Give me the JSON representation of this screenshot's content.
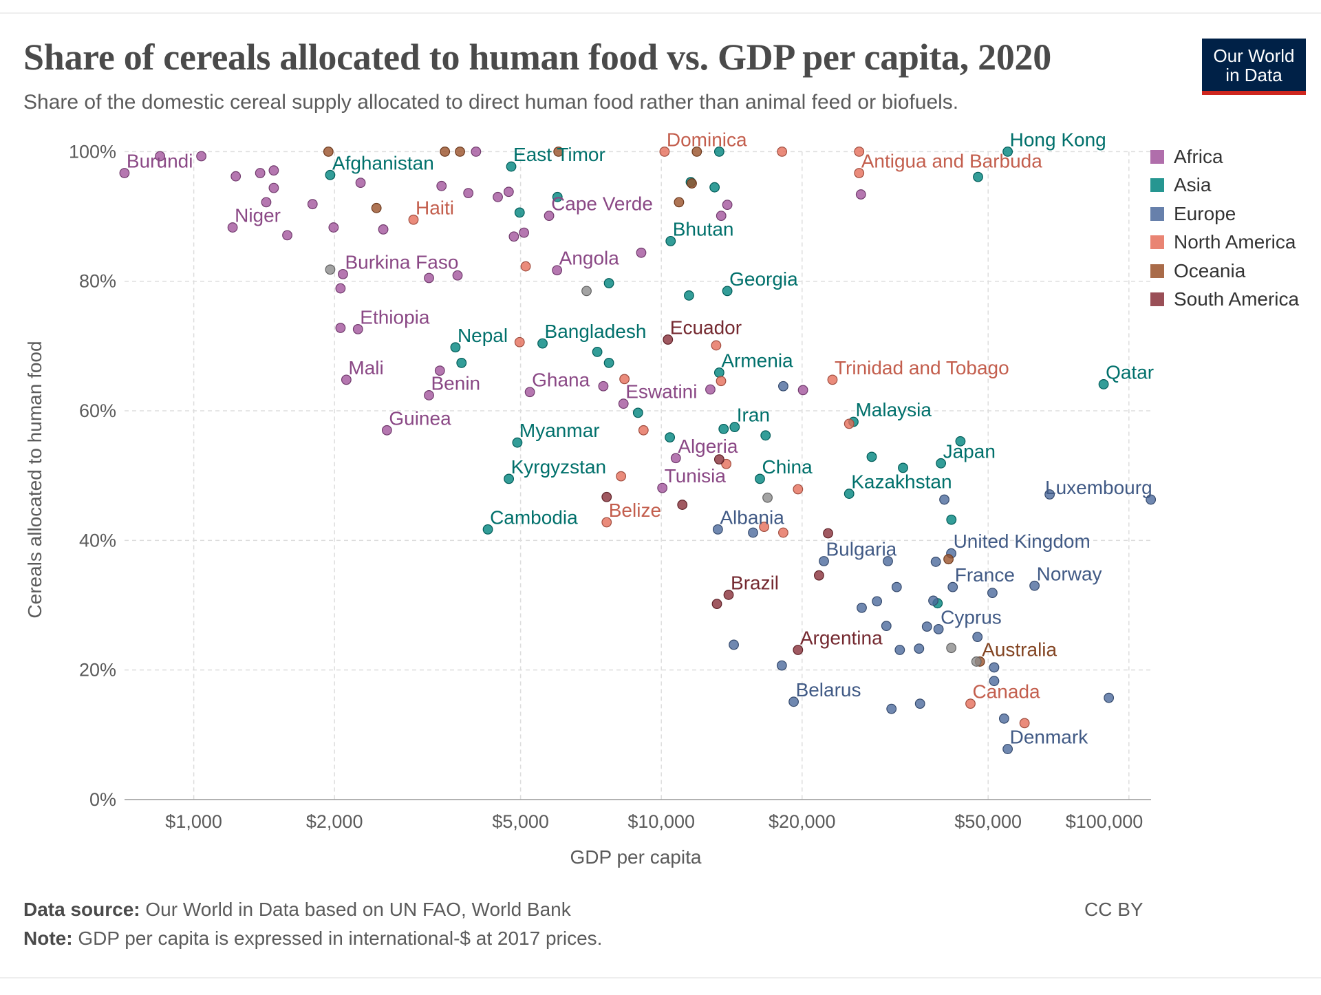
{
  "header": {
    "title": "Share of cereals allocated to human food vs. GDP per capita, 2020",
    "subtitle": "Share of the domestic cereal supply allocated to direct human food rather than animal feed or biofuels.",
    "logo_line1": "Our World",
    "logo_line2": "in Data"
  },
  "footer": {
    "source_label": "Data source:",
    "source_text": " Our World in Data based on UN FAO, World Bank",
    "note_label": "Note:",
    "note_text": " GDP per capita is expressed in international-$ at 2017 prices.",
    "license": "CC BY"
  },
  "chart_data": {
    "type": "scatter",
    "title": "Share of cereals allocated to human food vs. GDP per capita, 2020",
    "xlabel": "GDP per capita",
    "ylabel": "Cereals allocated to human food",
    "x_scale": "log",
    "xlim": [
      711,
      111000
    ],
    "ylim": [
      0,
      100
    ],
    "x_ticks": [
      1000,
      2000,
      5000,
      10000,
      20000,
      50000,
      100000
    ],
    "x_tick_labels": [
      "$1,000",
      "$2,000",
      "$5,000",
      "$10,000",
      "$20,000",
      "$50,000",
      "$100,000"
    ],
    "y_ticks": [
      0,
      20,
      40,
      60,
      80,
      100
    ],
    "y_tick_labels": [
      "0%",
      "20%",
      "40%",
      "60%",
      "80%",
      "100%"
    ],
    "grid": true,
    "legend_position": "right",
    "series": [
      {
        "name": "Africa",
        "color": "#a2559c",
        "points": [
          {
            "x": 711,
            "y": 96.7,
            "label": "Burundi"
          },
          {
            "x": 847,
            "y": 99.3
          },
          {
            "x": 1038,
            "y": 99.3
          },
          {
            "x": 1230,
            "y": 96.2
          },
          {
            "x": 1387,
            "y": 96.7
          },
          {
            "x": 1483,
            "y": 97.1
          },
          {
            "x": 1483,
            "y": 94.4
          },
          {
            "x": 1429,
            "y": 92.2
          },
          {
            "x": 1211,
            "y": 88.3,
            "label": "Niger"
          },
          {
            "x": 1585,
            "y": 87.1
          },
          {
            "x": 1795,
            "y": 91.9
          },
          {
            "x": 1991,
            "y": 88.3
          },
          {
            "x": 2274,
            "y": 95.2
          },
          {
            "x": 2543,
            "y": 88.0
          },
          {
            "x": 3388,
            "y": 94.7
          },
          {
            "x": 3866,
            "y": 93.6
          },
          {
            "x": 4015,
            "y": 100
          },
          {
            "x": 4470,
            "y": 93.0
          },
          {
            "x": 4716,
            "y": 93.8
          },
          {
            "x": 4838,
            "y": 86.9
          },
          {
            "x": 5085,
            "y": 87.5
          },
          {
            "x": 5754,
            "y": 90.1,
            "label": "Cape Verde"
          },
          {
            "x": 13840,
            "y": 91.8
          },
          {
            "x": 13430,
            "y": 90.1
          },
          {
            "x": 26720,
            "y": 93.4
          },
          {
            "x": 2085,
            "y": 81.1,
            "label": "Burkina Faso"
          },
          {
            "x": 2060,
            "y": 78.9
          },
          {
            "x": 3185,
            "y": 80.5
          },
          {
            "x": 3666,
            "y": 80.9
          },
          {
            "x": 5984,
            "y": 81.7,
            "label": "Angola"
          },
          {
            "x": 9057,
            "y": 84.4
          },
          {
            "x": 2245,
            "y": 72.6,
            "label": "Ethiopia"
          },
          {
            "x": 2060,
            "y": 72.8
          },
          {
            "x": 2120,
            "y": 64.8,
            "label": "Mali"
          },
          {
            "x": 3185,
            "y": 62.4,
            "label": "Benin"
          },
          {
            "x": 3360,
            "y": 66.2
          },
          {
            "x": 2589,
            "y": 57.0,
            "label": "Guinea"
          },
          {
            "x": 5234,
            "y": 62.9,
            "label": "Ghana"
          },
          {
            "x": 7516,
            "y": 63.8
          },
          {
            "x": 8300,
            "y": 61.1,
            "label": "Eswatini"
          },
          {
            "x": 12730,
            "y": 63.3
          },
          {
            "x": 20090,
            "y": 63.2
          },
          {
            "x": 10740,
            "y": 52.7,
            "label": "Algeria"
          },
          {
            "x": 10050,
            "y": 48.1,
            "label": "Tunisia"
          }
        ]
      },
      {
        "name": "Asia",
        "color": "#00847e",
        "points": [
          {
            "x": 1958,
            "y": 96.4,
            "label": "Afghanistan"
          },
          {
            "x": 4775,
            "y": 97.7,
            "label": "East Timor"
          },
          {
            "x": 4977,
            "y": 90.6
          },
          {
            "x": 5996,
            "y": 93.0
          },
          {
            "x": 13300,
            "y": 100
          },
          {
            "x": 13000,
            "y": 94.5
          },
          {
            "x": 11560,
            "y": 95.3
          },
          {
            "x": 10470,
            "y": 86.2,
            "label": "Bhutan"
          },
          {
            "x": 55050,
            "y": 100,
            "label": "Hong Kong"
          },
          {
            "x": 47570,
            "y": 96.1
          },
          {
            "x": 13840,
            "y": 78.5,
            "label": "Georgia"
          },
          {
            "x": 11460,
            "y": 77.8
          },
          {
            "x": 7727,
            "y": 79.7
          },
          {
            "x": 5571,
            "y": 70.4,
            "label": "Bangladesh"
          },
          {
            "x": 3628,
            "y": 69.8,
            "label": "Nepal"
          },
          {
            "x": 3738,
            "y": 67.4
          },
          {
            "x": 7295,
            "y": 69.1
          },
          {
            "x": 7727,
            "y": 67.4
          },
          {
            "x": 13300,
            "y": 65.9,
            "label": "Armenia"
          },
          {
            "x": 8915,
            "y": 59.7
          },
          {
            "x": 14350,
            "y": 57.5,
            "label": "Iran"
          },
          {
            "x": 13590,
            "y": 57.2
          },
          {
            "x": 16710,
            "y": 56.2
          },
          {
            "x": 10430,
            "y": 55.9
          },
          {
            "x": 4921,
            "y": 55.1,
            "label": "Myanmar"
          },
          {
            "x": 4720,
            "y": 49.5,
            "label": "Kyrgyzstan"
          },
          {
            "x": 4256,
            "y": 41.7,
            "label": "Cambodia"
          },
          {
            "x": 16250,
            "y": 49.5,
            "label": "China"
          },
          {
            "x": 25760,
            "y": 58.3,
            "label": "Malaysia"
          },
          {
            "x": 28180,
            "y": 52.9
          },
          {
            "x": 32880,
            "y": 51.2
          },
          {
            "x": 25220,
            "y": 47.2,
            "label": "Kazakhstan"
          },
          {
            "x": 39630,
            "y": 51.9,
            "label": "Japan"
          },
          {
            "x": 43620,
            "y": 55.3
          },
          {
            "x": 41720,
            "y": 43.2
          },
          {
            "x": 88300,
            "y": 64.1,
            "label": "Qatar"
          },
          {
            "x": 38980,
            "y": 30.3
          }
        ]
      },
      {
        "name": "Europe",
        "color": "#4c6a9c",
        "points": [
          {
            "x": 18230,
            "y": 63.8
          },
          {
            "x": 111400,
            "y": 46.3,
            "label": "Luxembourg"
          },
          {
            "x": 67690,
            "y": 47.1
          },
          {
            "x": 40300,
            "y": 46.3
          },
          {
            "x": 13210,
            "y": 41.7,
            "label": "Albania"
          },
          {
            "x": 15710,
            "y": 41.2
          },
          {
            "x": 22270,
            "y": 36.8,
            "label": "Bulgaria"
          },
          {
            "x": 30520,
            "y": 36.8
          },
          {
            "x": 38640,
            "y": 36.7
          },
          {
            "x": 41690,
            "y": 38.0,
            "label": "United Kingdom"
          },
          {
            "x": 42000,
            "y": 32.8,
            "label": "France"
          },
          {
            "x": 62830,
            "y": 33.0,
            "label": "Norway"
          },
          {
            "x": 51060,
            "y": 31.9
          },
          {
            "x": 31870,
            "y": 32.8
          },
          {
            "x": 28920,
            "y": 30.6
          },
          {
            "x": 26830,
            "y": 29.6
          },
          {
            "x": 38170,
            "y": 30.7
          },
          {
            "x": 39160,
            "y": 26.3,
            "label": "Cyprus"
          },
          {
            "x": 36990,
            "y": 26.7
          },
          {
            "x": 30290,
            "y": 26.8
          },
          {
            "x": 47440,
            "y": 25.1
          },
          {
            "x": 14290,
            "y": 23.9
          },
          {
            "x": 32360,
            "y": 23.1
          },
          {
            "x": 35580,
            "y": 23.3
          },
          {
            "x": 18100,
            "y": 20.7
          },
          {
            "x": 51500,
            "y": 20.4
          },
          {
            "x": 51500,
            "y": 18.3
          },
          {
            "x": 19190,
            "y": 15.1,
            "label": "Belarus"
          },
          {
            "x": 31060,
            "y": 14.0
          },
          {
            "x": 35750,
            "y": 14.8
          },
          {
            "x": 54080,
            "y": 12.5
          },
          {
            "x": 55050,
            "y": 7.8,
            "label": "Denmark"
          },
          {
            "x": 90600,
            "y": 15.7
          }
        ]
      },
      {
        "name": "North America",
        "color": "#e56e5a",
        "points": [
          {
            "x": 2951,
            "y": 89.5,
            "label": "Haiti"
          },
          {
            "x": 5128,
            "y": 82.3
          },
          {
            "x": 4977,
            "y": 70.6
          },
          {
            "x": 10160,
            "y": 100,
            "label": "Dominica"
          },
          {
            "x": 18120,
            "y": 100
          },
          {
            "x": 26490,
            "y": 100
          },
          {
            "x": 26490,
            "y": 96.7,
            "label": "Antigua and Barbuda"
          },
          {
            "x": 13100,
            "y": 70.1
          },
          {
            "x": 13420,
            "y": 64.6
          },
          {
            "x": 8340,
            "y": 64.9
          },
          {
            "x": 9160,
            "y": 57.0
          },
          {
            "x": 23230,
            "y": 64.8,
            "label": "Trinidad and Tobago"
          },
          {
            "x": 25220,
            "y": 58.0
          },
          {
            "x": 7640,
            "y": 42.8,
            "label": "Belize"
          },
          {
            "x": 8200,
            "y": 49.9
          },
          {
            "x": 13770,
            "y": 51.8
          },
          {
            "x": 19600,
            "y": 47.9
          },
          {
            "x": 18230,
            "y": 41.2
          },
          {
            "x": 16590,
            "y": 42.1
          },
          {
            "x": 45830,
            "y": 14.8,
            "label": "Canada"
          },
          {
            "x": 59820,
            "y": 11.8
          }
        ]
      },
      {
        "name": "Oceania",
        "color": "#9a5129",
        "points": [
          {
            "x": 1941,
            "y": 100
          },
          {
            "x": 3445,
            "y": 100
          },
          {
            "x": 3710,
            "y": 100
          },
          {
            "x": 6026,
            "y": 100
          },
          {
            "x": 11910,
            "y": 100
          },
          {
            "x": 10910,
            "y": 92.2
          },
          {
            "x": 2459,
            "y": 91.3
          },
          {
            "x": 11620,
            "y": 95.1
          },
          {
            "x": 41130,
            "y": 37.1
          },
          {
            "x": 48000,
            "y": 21.3,
            "label": "Australia"
          }
        ]
      },
      {
        "name": "South America",
        "color": "#883039",
        "points": [
          {
            "x": 10330,
            "y": 71.0,
            "label": "Ecuador"
          },
          {
            "x": 13300,
            "y": 52.5
          },
          {
            "x": 7640,
            "y": 46.7
          },
          {
            "x": 11090,
            "y": 45.5
          },
          {
            "x": 22730,
            "y": 41.1
          },
          {
            "x": 21740,
            "y": 34.6
          },
          {
            "x": 13930,
            "y": 31.6,
            "label": "Brazil"
          },
          {
            "x": 13150,
            "y": 30.2
          },
          {
            "x": 19600,
            "y": 23.1,
            "label": "Argentina"
          }
        ]
      },
      {
        "color": "#8c8c8c",
        "points": [
          {
            "x": 1958,
            "y": 81.8
          },
          {
            "x": 6920,
            "y": 78.5
          },
          {
            "x": 16870,
            "y": 46.6
          },
          {
            "x": 41700,
            "y": 23.4
          },
          {
            "x": 47200,
            "y": 21.3
          }
        ]
      }
    ]
  }
}
